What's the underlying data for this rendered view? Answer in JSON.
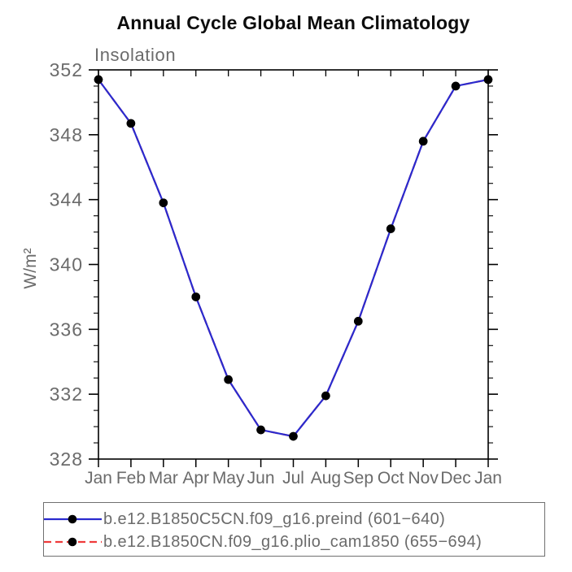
{
  "page": {
    "title": "Annual Cycle Global Mean Climatology",
    "subtitle": "Insolation"
  },
  "colors": {
    "series1_blue": "#2a2ace",
    "series2_red": "#ef3b3b",
    "marker_black": "#000000",
    "axis_black": "#000000",
    "label_gray": "#6b6b6b",
    "legend_border_gray": "#707070"
  },
  "chart_data": {
    "type": "line",
    "title": "Annual Cycle Global Mean Climatology",
    "subtitle": "Insolation",
    "xlabel": "",
    "ylabel": "W/m²",
    "categories": [
      "Jan",
      "Feb",
      "Mar",
      "Apr",
      "May",
      "Jun",
      "Jul",
      "Aug",
      "Sep",
      "Oct",
      "Nov",
      "Dec",
      "Jan"
    ],
    "ylim": [
      328,
      352
    ],
    "ytick_major_step": 4,
    "ytick_minor_step": 1,
    "grid": false,
    "legend_position": "bottom",
    "series": [
      {
        "name": "b.e12.B1850C5CN.f09_g16.preind (601−640)",
        "color": "#2a2ace",
        "line_style": "solid",
        "marker": "filled-circle",
        "values": [
          351.4,
          348.7,
          343.8,
          338.0,
          332.9,
          329.8,
          329.4,
          331.9,
          336.5,
          342.2,
          347.6,
          351.0,
          351.4
        ]
      },
      {
        "name": "b.e12.B1850CN.f09_g16.plio_cam1850 (655−694)",
        "color": "#ef3b3b",
        "line_style": "dashed",
        "marker": "filled-circle",
        "values": [
          351.4,
          348.7,
          343.8,
          338.0,
          332.9,
          329.8,
          329.4,
          331.9,
          336.5,
          342.2,
          347.6,
          351.0,
          351.4
        ]
      }
    ]
  }
}
